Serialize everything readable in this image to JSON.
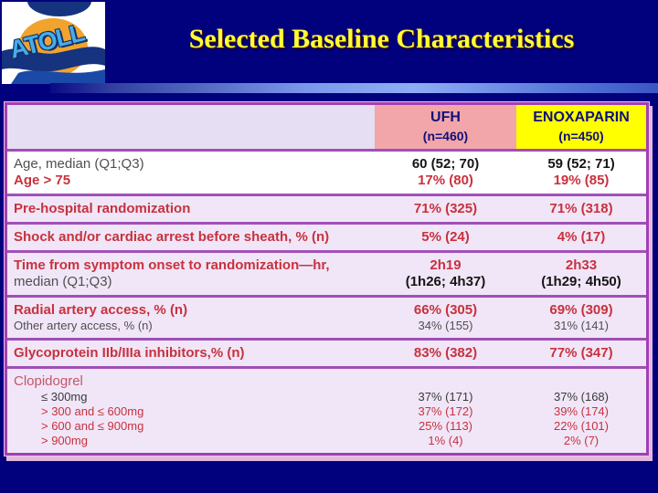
{
  "slide": {
    "title": "Selected Baseline Characteristics",
    "logo_text": "ATOLL",
    "colors": {
      "background_navy": "#01017E",
      "title_yellow": "#FFFF33",
      "table_border_purple": "#A23FB4",
      "row_separator_purple": "#A14FB8",
      "ufh_header_pink": "#F2A6A9",
      "enox_header_yellow": "#FFFF00",
      "header_text_navy": "#10107A",
      "row_lavender": "#F0E6F7",
      "value_red": "#C8313E"
    }
  },
  "table": {
    "columns": [
      {
        "name": "UFH",
        "n": "(n=460)"
      },
      {
        "name": "ENOXAPARIN",
        "n": "(n=450)"
      }
    ],
    "rows": [
      {
        "bg": "white",
        "label": [
          {
            "text": "Age, median (Q1;Q3)",
            "style": "plain"
          },
          {
            "text": "Age > 75",
            "style": "red-bold"
          }
        ],
        "ufh": [
          {
            "text": "60 (52; 70)",
            "style": "black-bold"
          },
          {
            "text": "17% (80)",
            "style": "red-bold"
          }
        ],
        "enox": [
          {
            "text": "59 (52; 71)",
            "style": "black-bold"
          },
          {
            "text": "19% (85)",
            "style": "red-bold"
          }
        ]
      },
      {
        "label": [
          {
            "text": "Pre-hospital randomization",
            "style": "red-bold"
          }
        ],
        "ufh": [
          {
            "text": "71% (325)",
            "style": "red-bold"
          }
        ],
        "enox": [
          {
            "text": "71% (318)",
            "style": "red-bold"
          }
        ]
      },
      {
        "label": [
          {
            "text": "Shock and/or cardiac arrest before sheath, % (n)",
            "style": "red-bold"
          }
        ],
        "ufh": [
          {
            "text": "5% (24)",
            "style": "red-bold"
          }
        ],
        "enox": [
          {
            "text": "4% (17)",
            "style": "red-bold"
          }
        ]
      },
      {
        "label": [
          {
            "text": "Time from symptom onset to randomization—hr,",
            "style": "red-bold"
          },
          {
            "text": "median (Q1;Q3)",
            "style": "plain"
          }
        ],
        "ufh": [
          {
            "text": "2h19",
            "style": "red-bold"
          },
          {
            "text": "(1h26; 4h37)",
            "style": "black-bold"
          }
        ],
        "enox": [
          {
            "text": "2h33",
            "style": "red-bold"
          },
          {
            "text": "(1h29; 4h50)",
            "style": "black-bold"
          }
        ]
      },
      {
        "label": [
          {
            "text": "Radial artery access, %  (n)",
            "style": "red-bold"
          },
          {
            "text": "Other artery access, %  (n)",
            "style": "plain-small"
          }
        ],
        "ufh": [
          {
            "text": "66% (305)",
            "style": "red-bold"
          },
          {
            "text": "34% (155)",
            "style": "plain-small"
          }
        ],
        "enox": [
          {
            "text": "69% (309)",
            "style": "red-bold"
          },
          {
            "text": "31% (141)",
            "style": "plain-small"
          }
        ]
      },
      {
        "label": [
          {
            "text": "Glycoprotein IIb/IIIa inhibitors,% (n)",
            "style": "red-bold"
          }
        ],
        "ufh": [
          {
            "text": "83% (382)",
            "style": "red-bold"
          }
        ],
        "enox": [
          {
            "text": "77% (347)",
            "style": "red-bold"
          }
        ]
      },
      {
        "cls": "clopi",
        "label": [
          {
            "text": "Clopidogrel",
            "style": "rose"
          },
          {
            "text": "≤ 300mg",
            "style": "black-small indent"
          },
          {
            "text": "> 300 and ≤ 600mg",
            "style": "red-small indent"
          },
          {
            "text": "> 600 and ≤ 900mg",
            "style": "red-small indent"
          },
          {
            "text": "> 900mg",
            "style": "red-small indent"
          }
        ],
        "ufh": [
          {
            "text": "37% (171)",
            "style": "black-small"
          },
          {
            "text": "37% (172)",
            "style": "red-small"
          },
          {
            "text": "25% (113)",
            "style": "red-small"
          },
          {
            "text": "1% (4)",
            "style": "red-small"
          }
        ],
        "enox": [
          {
            "text": "37% (168)",
            "style": "black-small"
          },
          {
            "text": "39% (174)",
            "style": "red-small"
          },
          {
            "text": "22% (101)",
            "style": "red-small"
          },
          {
            "text": "2% (7)",
            "style": "red-small"
          }
        ]
      }
    ]
  }
}
